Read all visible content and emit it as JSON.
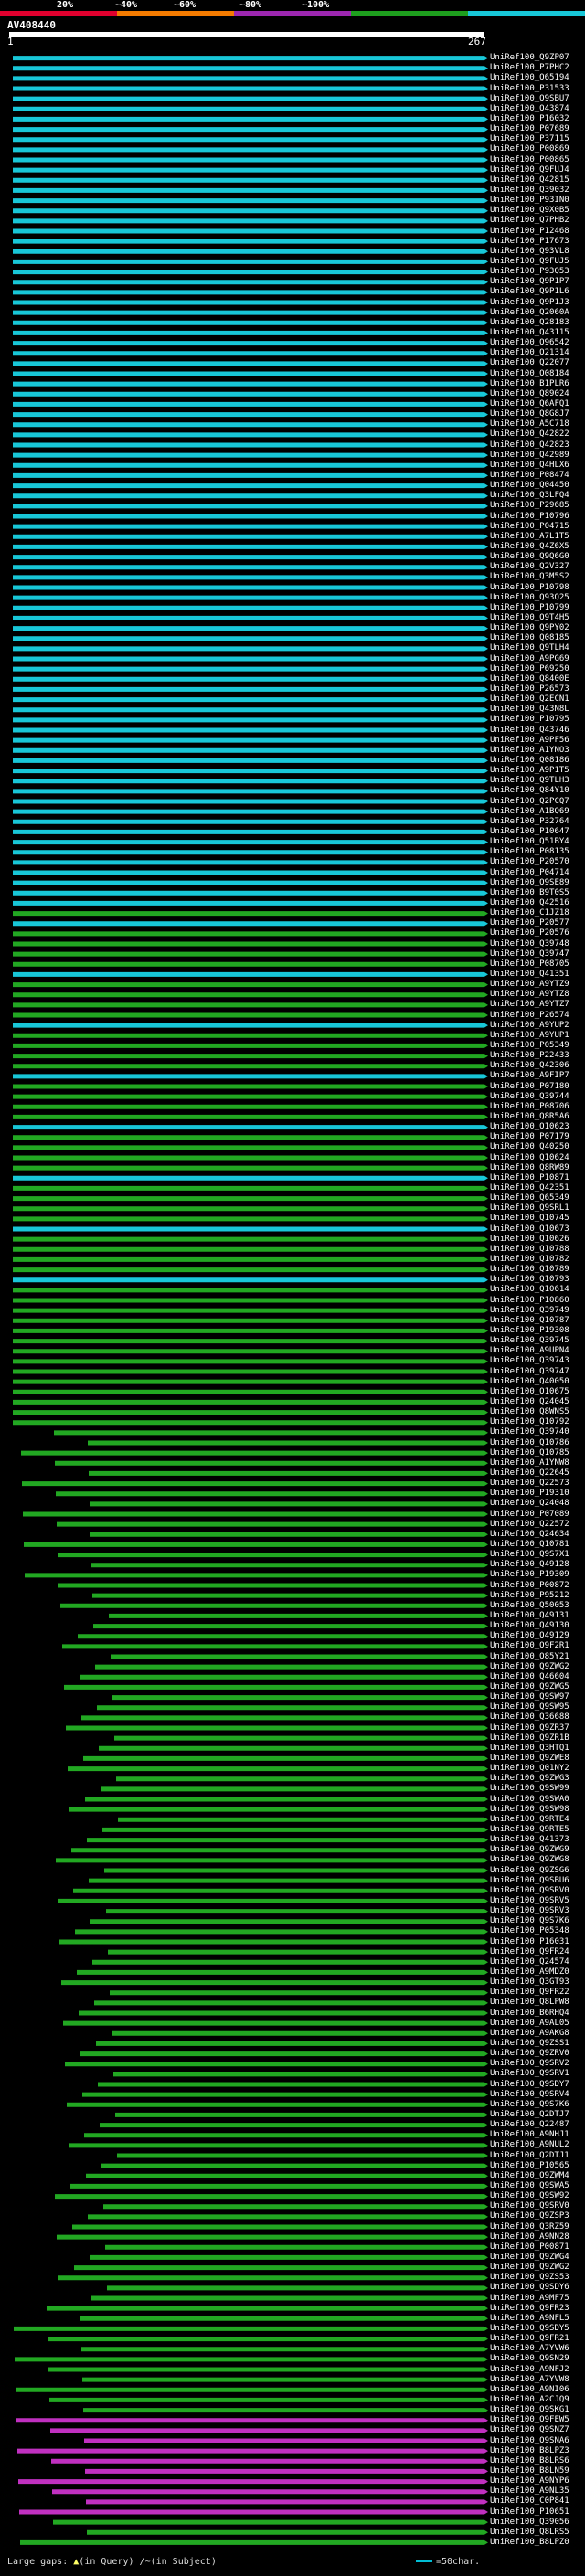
{
  "legend": {
    "labels": [
      "20%",
      "~40%",
      "~60%",
      "~80%",
      "~100%"
    ],
    "colors": [
      "#e0002e",
      "#f47b00",
      "#9c27b0",
      "#1e9e1e",
      "#18c7d8"
    ]
  },
  "query": {
    "name": "AV408440",
    "start": "1",
    "end": "267"
  },
  "colors": {
    "cyan": "#18c7d8",
    "green": "#22a822",
    "magenta": "#c030c0",
    "dark": "#0c3a0c"
  },
  "hits": [
    "UniRef100_Q9ZP07",
    "UniRef100_P7PHC2",
    "UniRef100_Q65194",
    "UniRef100_P31533",
    "UniRef100_Q9SBU7",
    "UniRef100_Q43874",
    "UniRef100_P16032",
    "UniRef100_P07689",
    "UniRef100_P37115",
    "UniRef100_P00869",
    "UniRef100_P00865",
    "UniRef100_Q9FUJ4",
    "UniRef100_Q42815",
    "UniRef100_Q39032",
    "UniRef100_P93IN0",
    "UniRef100_Q9X0B5",
    "UniRef100_Q7PHB2",
    "UniRef100_P12468",
    "UniRef100_P17673",
    "UniRef100_Q93VL8",
    "UniRef100_Q9FUJ5",
    "UniRef100_P93Q53",
    "UniRef100_Q9P1P7",
    "UniRef100_Q9P1L6",
    "UniRef100_Q9P1J3",
    "UniRef100_Q2060A",
    "UniRef100_Q28183",
    "UniRef100_Q43115",
    "UniRef100_Q96542",
    "UniRef100_Q21314",
    "UniRef100_Q22077",
    "UniRef100_Q08184",
    "UniRef100_B1PLR6",
    "UniRef100_Q89024",
    "UniRef100_Q6AFQ1",
    "UniRef100_Q8G8J7",
    "UniRef100_A5C718",
    "UniRef100_Q42822",
    "UniRef100_Q42823",
    "UniRef100_Q42989",
    "UniRef100_Q4HLX6",
    "UniRef100_P08474",
    "UniRef100_Q04450",
    "UniRef100_Q3LFQ4",
    "UniRef100_P29685",
    "UniRef100_P10796",
    "UniRef100_P04715",
    "UniRef100_A7L1T5",
    "UniRef100_Q4Z6X5",
    "UniRef100_Q9Q6G0",
    "UniRef100_Q2V327",
    "UniRef100_Q3M5S2",
    "UniRef100_P10798",
    "UniRef100_Q93Q25",
    "UniRef100_P10799",
    "UniRef100_Q9T4H5",
    "UniRef100_Q9PY02",
    "UniRef100_Q08185",
    "UniRef100_Q9TLH4",
    "UniRef100_A9PG69",
    "UniRef100_P69250",
    "UniRef100_Q8400E",
    "UniRef100_P26573",
    "UniRef100_Q2ECN1",
    "UniRef100_Q43N8L",
    "UniRef100_P10795",
    "UniRef100_Q43746",
    "UniRef100_A9PF56",
    "UniRef100_A1YNO3",
    "UniRef100_Q08186",
    "UniRef100_A9P1T5",
    "UniRef100_Q9TLH3",
    "UniRef100_Q84Y10",
    "UniRef100_Q2PCQ7",
    "UniRef100_A1BQ69",
    "UniRef100_P32764",
    "UniRef100_P10647",
    "UniRef100_Q51BY4",
    "UniRef100_P08135",
    "UniRef100_P20570",
    "UniRef100_P04714",
    "UniRef100_Q9SE89",
    "UniRef100_B9T0S5",
    "UniRef100_Q42516",
    "UniRef100_C1JZ18",
    "UniRef100_P20577",
    "UniRef100_P20576",
    "UniRef100_Q39748",
    "UniRef100_Q39747",
    "UniRef100_P08705",
    "UniRef100_Q41351",
    "UniRef100_A9YTZ9",
    "UniRef100_A9YTZ8",
    "UniRef100_A9YTZ7",
    "UniRef100_P26574",
    "UniRef100_A9YUP2",
    "UniRef100_A9YUP1",
    "UniRef100_P05349",
    "UniRef100_P22433",
    "UniRef100_Q42306",
    "UniRef100_A9FIP7",
    "UniRef100_P07180",
    "UniRef100_Q39744",
    "UniRef100_P08706",
    "UniRef100_Q8R5A6",
    "UniRef100_Q10623",
    "UniRef100_P07179",
    "UniRef100_Q40250",
    "UniRef100_Q10624",
    "UniRef100_Q8RW89",
    "UniRef100_P10871",
    "UniRef100_Q42351",
    "UniRef100_Q65349",
    "UniRef100_Q9SRL1",
    "UniRef100_Q10745",
    "UniRef100_Q10673",
    "UniRef100_Q10626",
    "UniRef100_Q10788",
    "UniRef100_Q10782",
    "UniRef100_Q10789",
    "UniRef100_Q10793",
    "UniRef100_Q10614",
    "UniRef100_P10860",
    "UniRef100_Q39749",
    "UniRef100_Q10787",
    "UniRef100_P19308",
    "UniRef100_Q39745",
    "UniRef100_A9UPN4",
    "UniRef100_Q39743",
    "UniRef100_Q39747",
    "UniRef100_Q40050",
    "UniRef100_Q10675",
    "UniRef100_Q24045",
    "UniRef100_Q8WNS5",
    "UniRef100_Q10792",
    "UniRef100_Q39740",
    "UniRef100_Q10786",
    "UniRef100_Q10785",
    "UniRef100_A1YNW8",
    "UniRef100_Q22645",
    "UniRef100_Q22573",
    "UniRef100_P19310",
    "UniRef100_Q24048",
    "UniRef100_P07089",
    "UniRef100_Q22572",
    "UniRef100_Q24634",
    "UniRef100_Q10781",
    "UniRef100_Q9S7X1",
    "UniRef100_Q49128",
    "UniRef100_P19309",
    "UniRef100_P00872",
    "UniRef100_P95212",
    "UniRef100_Q50053",
    "UniRef100_Q49131",
    "UniRef100_Q49130",
    "UniRef100_Q49129",
    "UniRef100_Q9F2R1",
    "UniRef100_Q85Y21",
    "UniRef100_Q9ZWG2",
    "UniRef100_Q46604",
    "UniRef100_Q9ZWG5",
    "UniRef100_Q9SW97",
    "UniRef100_Q9SW95",
    "UniRef100_Q36688",
    "UniRef100_Q9ZR37",
    "UniRef100_Q9ZR1B",
    "UniRef100_Q3HTQ1",
    "UniRef100_Q9ZWE8",
    "UniRef100_Q01NY2",
    "UniRef100_Q9ZWG3",
    "UniRef100_Q9SW99",
    "UniRef100_Q9SWA0",
    "UniRef100_Q9SW98",
    "UniRef100_Q9RTE4",
    "UniRef100_Q9RTE5",
    "UniRef100_Q41373",
    "UniRef100_Q9ZWG9",
    "UniRef100_Q9ZWG8",
    "UniRef100_Q9ZSG6",
    "UniRef100_Q9SBU6",
    "UniRef100_Q9SRV0",
    "UniRef100_Q9SRV5",
    "UniRef100_Q9SRV3",
    "UniRef100_Q9S7K6",
    "UniRef100_P05348",
    "UniRef100_P16031",
    "UniRef100_Q9FR24",
    "UniRef100_Q24574",
    "UniRef100_A9MDZ0",
    "UniRef100_Q3GT93",
    "UniRef100_Q9FR22",
    "UniRef100_Q8LPW8",
    "UniRef100_B6RHQ4",
    "UniRef100_A9AL05",
    "UniRef100_A9AKG8",
    "UniRef100_Q9ZSS1",
    "UniRef100_Q9ZRV0",
    "UniRef100_Q9SRV2",
    "UniRef100_Q9SRV1",
    "UniRef100_Q9SDY7",
    "UniRef100_Q9SRV4",
    "UniRef100_Q9S7K6",
    "UniRef100_Q2DTJ7",
    "UniRef100_Q22487",
    "UniRef100_A9NHJ1",
    "UniRef100_A9NUL2",
    "UniRef100_Q2DTJ1",
    "UniRef100_P10565",
    "UniRef100_Q9ZWM4",
    "UniRef100_Q9SWA5",
    "UniRef100_Q9SW92",
    "UniRef100_Q9SRV0",
    "UniRef100_Q9ZSP3",
    "UniRef100_Q3RZ59",
    "UniRef100_A9NN28",
    "UniRef100_P00871",
    "UniRef100_Q9ZWG4",
    "UniRef100_Q9ZWG2",
    "UniRef100_Q9ZS53",
    "UniRef100_Q9SDY6",
    "UniRef100_A9MF75",
    "UniRef100_Q9FR23",
    "UniRef100_A9NFL5",
    "UniRef100_Q9SDY5",
    "UniRef100_Q9FR21",
    "UniRef100_A7YVW6",
    "UniRef100_Q9SN29",
    "UniRef100_A9NFJ2",
    "UniRef100_A7YVW8",
    "UniRef100_A9NI06",
    "UniRef100_A2CJQ9",
    "UniRef100_Q9SKG1",
    "UniRef100_Q9FEW5",
    "UniRef100_Q9SNZ7",
    "UniRef100_Q9SNA6",
    "UniRef100_B8LPZ3",
    "UniRef100_B8LRS6",
    "UniRef100_B8LN59",
    "UniRef100_A9NYP6",
    "UniRef100_A9NL35",
    "UniRef100_C0P841",
    "UniRef100_P10651",
    "UniRef100_Q39056",
    "UniRef100_Q8LRS5",
    "UniRef100_B8LPZ0"
  ],
  "footer": {
    "large_gaps": "Large gaps:",
    "in_query": "(in Query)",
    "in_subject": "(in Subject)",
    "scale_label": "=50char."
  }
}
